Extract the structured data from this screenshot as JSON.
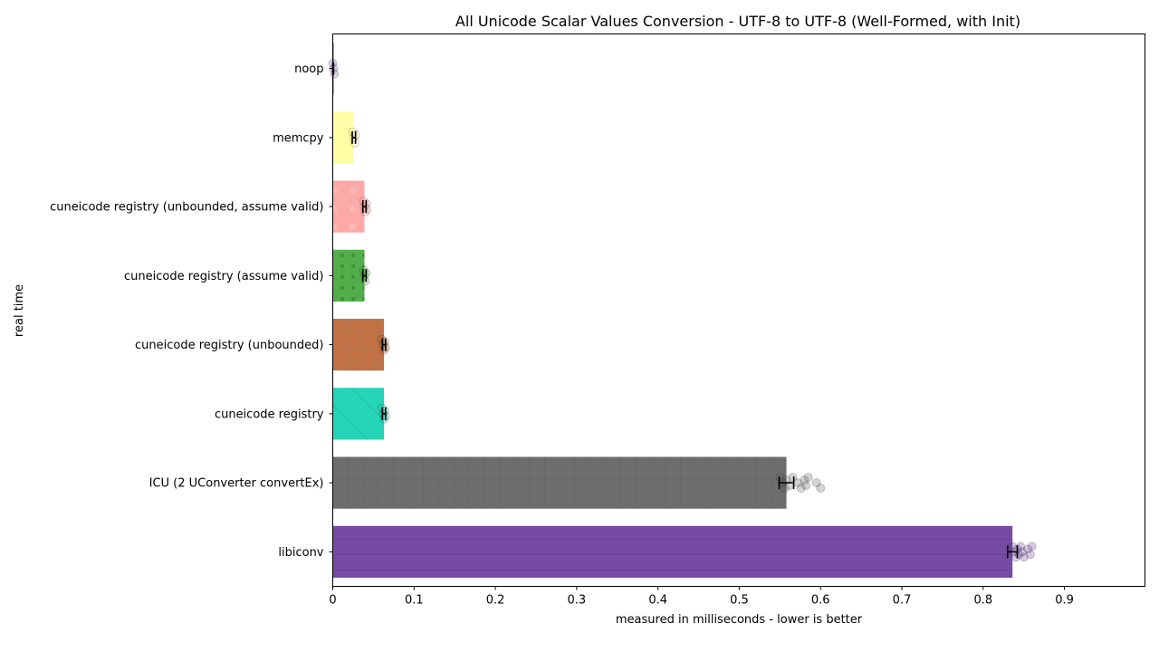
{
  "chart_data": {
    "type": "bar",
    "orientation": "horizontal",
    "title": "All Unicode Scalar Values Conversion - UTF-8 to UTF-8 (Well-Formed, with Init)",
    "xlabel": "measured in milliseconds - lower is better",
    "ylabel": "real time",
    "xlim": [
      0,
      0.999
    ],
    "xticks": [
      "0",
      "0.1",
      "0.2",
      "0.3",
      "0.4",
      "0.5",
      "0.6",
      "0.7",
      "0.8",
      "0.9"
    ],
    "grid": false,
    "categories": [
      "noop",
      "memcpy",
      "cuneicode registry (unbounded, assume valid)",
      "cuneicode registry (assume valid)",
      "cuneicode registry (unbounded)",
      "cuneicode registry",
      "ICU (2 UConverter convertEx)",
      "libiconv"
    ],
    "values": [
      0.0005,
      0.026,
      0.039,
      0.039,
      0.063,
      0.063,
      0.558,
      0.836
    ],
    "error": [
      0.0005,
      0.002,
      0.002,
      0.002,
      0.002,
      0.002,
      0.009,
      0.006
    ],
    "samples": [
      [
        0.0,
        0.001,
        0.002
      ],
      [
        0.025,
        0.026,
        0.027,
        0.028
      ],
      [
        0.038,
        0.039,
        0.04,
        0.041,
        0.042
      ],
      [
        0.038,
        0.039,
        0.04,
        0.041
      ],
      [
        0.06,
        0.062,
        0.063,
        0.064,
        0.065
      ],
      [
        0.061,
        0.062,
        0.063,
        0.064,
        0.065
      ],
      [
        0.55,
        0.553,
        0.556,
        0.558,
        0.562,
        0.566,
        0.572,
        0.576,
        0.58,
        0.582,
        0.585,
        0.595,
        0.6
      ],
      [
        0.836,
        0.838,
        0.84,
        0.842,
        0.844,
        0.846,
        0.848,
        0.85,
        0.855,
        0.858,
        0.86
      ]
    ],
    "colors": [
      "#6a3d9a",
      "#ffff99",
      "#fb9a99",
      "#33a02c",
      "#b15928",
      "#00ccaa",
      "#555555",
      "#5e2b97"
    ],
    "patterns": [
      "none",
      "none",
      "stars",
      "dots",
      "circles",
      "diagonal",
      "grid",
      "horizontal"
    ]
  }
}
